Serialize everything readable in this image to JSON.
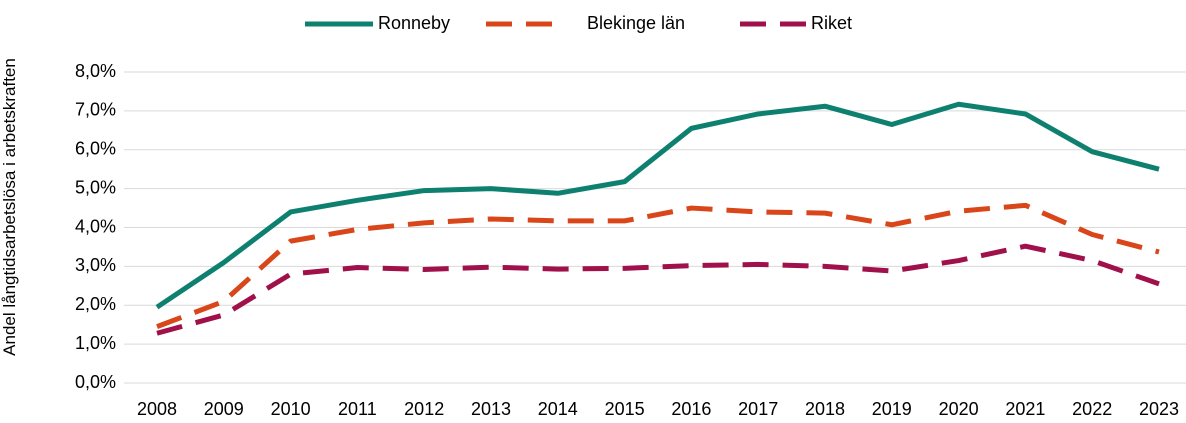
{
  "chart_data": {
    "type": "line",
    "y_label": "Andel långtidsarbetslösa i arbetskraften",
    "categories": [
      "2008",
      "2009",
      "2010",
      "2011",
      "2012",
      "2013",
      "2014",
      "2015",
      "2016",
      "2017",
      "2018",
      "2019",
      "2020",
      "2021",
      "2022",
      "2023"
    ],
    "series": [
      {
        "name": "Ronneby",
        "color": "#0e8070",
        "dashed": false,
        "values": [
          1.95,
          3.1,
          4.4,
          4.7,
          4.95,
          5.0,
          4.88,
          5.18,
          6.55,
          6.92,
          7.12,
          6.65,
          7.17,
          6.92,
          5.95,
          5.5
        ]
      },
      {
        "name": "Blekinge län",
        "color": "#d9461a",
        "dashed": true,
        "values": [
          1.45,
          2.1,
          3.65,
          3.95,
          4.12,
          4.22,
          4.17,
          4.17,
          4.5,
          4.4,
          4.37,
          4.07,
          4.42,
          4.57,
          3.82,
          3.37
        ]
      },
      {
        "name": "Riket",
        "color": "#a0104a",
        "dashed": true,
        "values": [
          1.28,
          1.75,
          2.8,
          2.97,
          2.92,
          2.98,
          2.93,
          2.95,
          3.02,
          3.05,
          3.0,
          2.88,
          3.15,
          3.52,
          3.15,
          2.55
        ]
      }
    ],
    "ylim": [
      0,
      8
    ],
    "yticks": [
      {
        "value": 0,
        "label": "0,0%"
      },
      {
        "value": 1,
        "label": "1,0%"
      },
      {
        "value": 2,
        "label": "2,0%"
      },
      {
        "value": 3,
        "label": "3,0%"
      },
      {
        "value": 4,
        "label": "4,0%"
      },
      {
        "value": 5,
        "label": "5,0%"
      },
      {
        "value": 6,
        "label": "6,0%"
      },
      {
        "value": 7,
        "label": "7,0%"
      },
      {
        "value": 8,
        "label": "8,0%"
      }
    ],
    "grid": true,
    "legend": "top"
  }
}
